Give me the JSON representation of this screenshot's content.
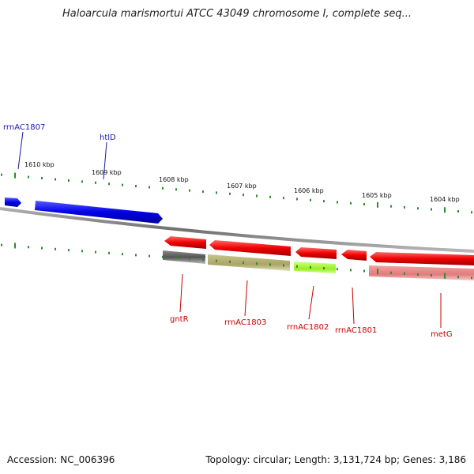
{
  "title": "Haloarcula marismortui ATCC 43049 chromosome I, complete seq...",
  "footer": {
    "accession": "Accession: NC_006396",
    "summary": "Topology: circular; Length: 3,131,724 bp; Genes: 3,186"
  },
  "colors": {
    "backbone": "#888888",
    "tick": "#2e8b2e",
    "forward_gene": "#0000ee",
    "reverse_gene": "#ee0000",
    "forward_label": "#1a1aa6",
    "reverse_label": "#c80000"
  },
  "ticks": [
    {
      "label": "1610 kbp"
    },
    {
      "label": "1609 kbp"
    },
    {
      "label": "1608 kbp"
    },
    {
      "label": "1607 kbp"
    },
    {
      "label": "1606 kbp"
    },
    {
      "label": "1605 kbp"
    },
    {
      "label": "1604 kbp"
    }
  ],
  "gene_labels": [
    {
      "name": "rrnAC1807",
      "strand": "forward"
    },
    {
      "name": "htlD",
      "strand": "forward"
    },
    {
      "name": "gntR",
      "strand": "reverse"
    },
    {
      "name": "rrnAC1803",
      "strand": "reverse"
    },
    {
      "name": "rrnAC1802",
      "strand": "reverse"
    },
    {
      "name": "rrnAC1801",
      "strand": "reverse"
    },
    {
      "name": "metG",
      "strand": "reverse"
    }
  ]
}
